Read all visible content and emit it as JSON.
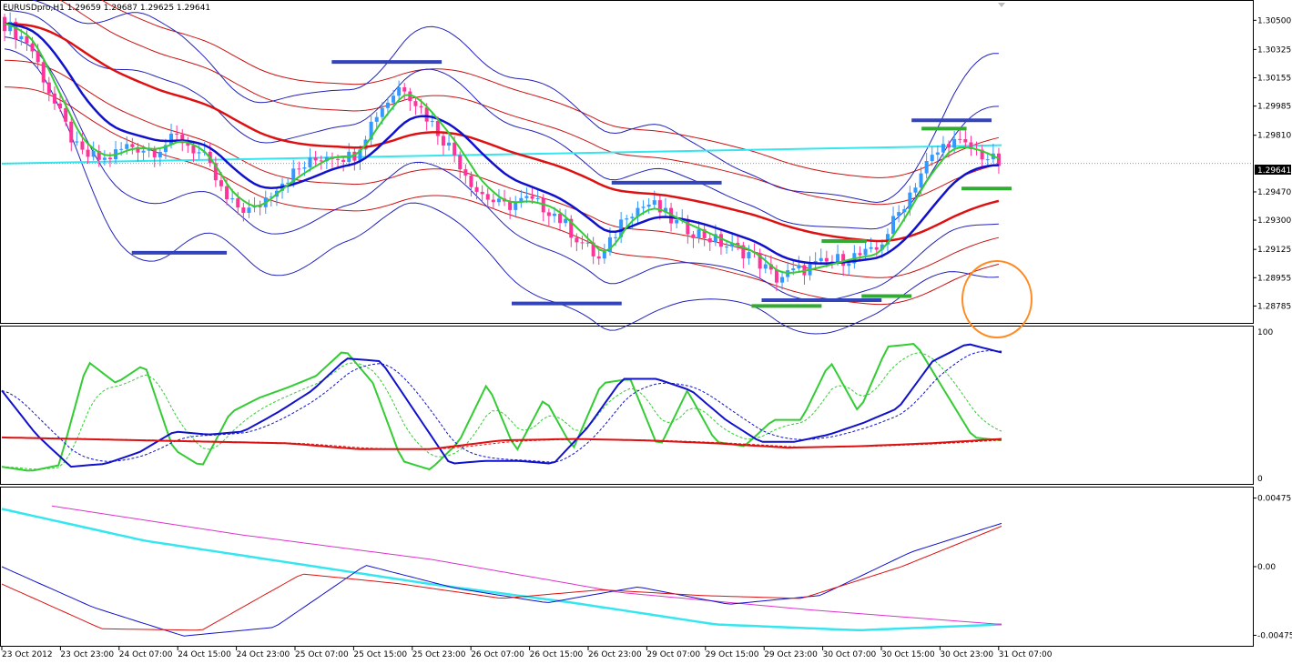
{
  "header": {
    "symbol_info": "EURUSDpro,H1  1.29659 1.29687 1.29625 1.29641"
  },
  "colors": {
    "bull": "#3399ff",
    "bear": "#ff3399",
    "ema_fast": "#33cc33",
    "ema_mid": "#1111cc",
    "ema_slow": "#dd1111",
    "band_blue": "#2222bb",
    "band_red": "#cc1111",
    "cyan": "#33e6f0",
    "marker_blue": "#3344bb",
    "marker_green": "#33aa33",
    "circle": "#ff8a1f",
    "magenta": "#dd33cc"
  },
  "chart_data": [
    {
      "type": "candlestick",
      "panel": "price",
      "title": "EURUSDpro,H1",
      "ohlc_last": {
        "open": 1.29659,
        "high": 1.29687,
        "low": 1.29625,
        "close": 1.29641
      },
      "ylim": [
        1.287,
        1.306
      ],
      "y_ticks": [
        "1.30500",
        "1.30325",
        "1.30155",
        "1.29985",
        "1.29810",
        "1.29470",
        "1.29300",
        "1.29125",
        "1.28955",
        "1.28785"
      ],
      "current_price_label": "1.29641",
      "x_tick_labels": [
        "23 Oct 2012",
        "23 Oct 23:00",
        "24 Oct 07:00",
        "24 Oct 15:00",
        "24 Oct 23:00",
        "25 Oct 07:00",
        "25 Oct 15:00",
        "25 Oct 23:00",
        "26 Oct 07:00",
        "26 Oct 15:00",
        "26 Oct 23:00",
        "29 Oct 07:00",
        "29 Oct 15:00",
        "29 Oct 23:00",
        "30 Oct 07:00",
        "30 Oct 15:00",
        "30 Oct 23:00",
        "31 Oct 07:00"
      ],
      "close_path_anchors": [
        1.3048,
        1.3036,
        1.3,
        1.297,
        1.2966,
        1.2975,
        1.2972,
        1.298,
        1.2968,
        1.294,
        1.2935,
        1.2952,
        1.2962,
        1.297,
        1.2968,
        1.2995,
        1.3012,
        1.2992,
        1.2972,
        1.2948,
        1.2938,
        1.2942,
        1.2936,
        1.292,
        1.2905,
        1.2935,
        1.294,
        1.2928,
        1.2922,
        1.2915,
        1.291,
        1.2895,
        1.29,
        1.2904,
        1.2908,
        1.291,
        1.2935,
        1.2962,
        1.2978,
        1.2972,
        1.2964
      ]
    },
    {
      "type": "line",
      "panel": "oscillator",
      "ylim": [
        0,
        100
      ],
      "y_ticks": [
        "100",
        "0"
      ],
      "series": [
        {
          "color": "green",
          "values": [
            8,
            5,
            9,
            80,
            65,
            78,
            20,
            8,
            45,
            55,
            62,
            70,
            88,
            65,
            12,
            6,
            25,
            65,
            18,
            55,
            20,
            65,
            68,
            20,
            60,
            25,
            22,
            40,
            40,
            80,
            45,
            90,
            92,
            60,
            28,
            26
          ]
        },
        {
          "color": "blue",
          "values": [
            60,
            30,
            8,
            10,
            18,
            32,
            30,
            32,
            45,
            60,
            82,
            80,
            45,
            10,
            12,
            12,
            10,
            35,
            68,
            68,
            60,
            40,
            25,
            25,
            30,
            38,
            48,
            80,
            92,
            86
          ]
        },
        {
          "color": "red",
          "values": [
            28,
            27,
            26,
            25,
            24,
            20,
            20,
            26,
            27,
            26,
            24,
            21,
            22,
            24,
            27
          ]
        }
      ]
    },
    {
      "type": "line",
      "panel": "macd",
      "ylim": [
        -0.0051,
        0.0051
      ],
      "y_ticks": [
        "0.00475",
        "0.00",
        "-0.00475"
      ],
      "series": [
        {
          "color": "cyan",
          "values": [
            0.004,
            0.0018,
            0.0003,
            -0.0012,
            -0.0025,
            -0.004,
            -0.0044,
            -0.004
          ]
        },
        {
          "color": "magenta",
          "values": [
            0.0042,
            0.0022,
            0.0005,
            -0.0018,
            -0.003,
            -0.004
          ]
        },
        {
          "color": "blue",
          "values": [
            0.0,
            -0.0028,
            -0.0048,
            -0.0042,
            0.0001,
            -0.0015,
            -0.0025,
            -0.0014,
            -0.0026,
            -0.002,
            0.001,
            0.003
          ]
        },
        {
          "color": "red",
          "values": [
            -0.0012,
            -0.0043,
            -0.0044,
            -0.0005,
            -0.0012,
            -0.0022,
            -0.0016,
            -0.002,
            -0.0022,
            0.0,
            0.0028
          ]
        }
      ]
    }
  ]
}
